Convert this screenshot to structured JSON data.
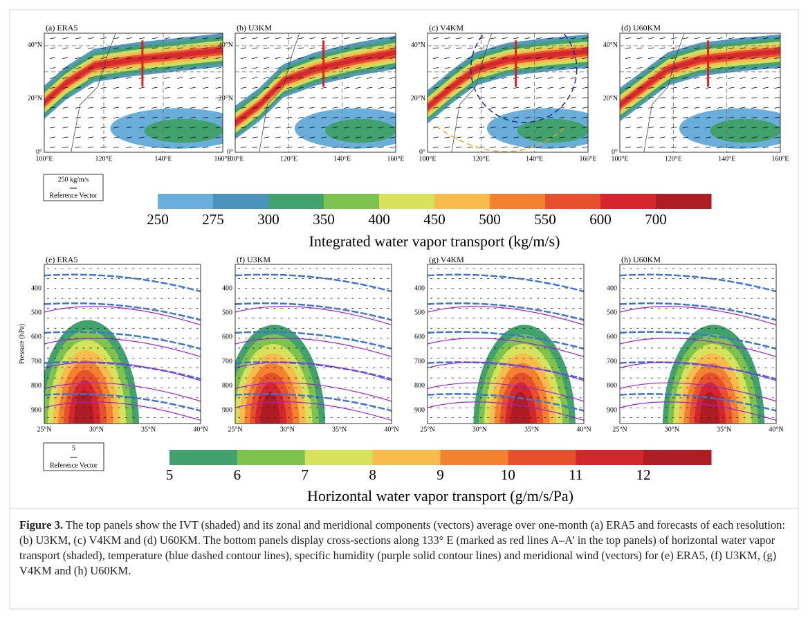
{
  "top_panels": [
    {
      "label": "(a) ERA5"
    },
    {
      "label": "(b) U3KM"
    },
    {
      "label": "(c) V4KM"
    },
    {
      "label": "(d) U60KM"
    }
  ],
  "top_axes": {
    "lon_labels": [
      "100°E",
      "120°E",
      "140°E",
      "160°E"
    ],
    "lat_labels": [
      "0°",
      "20°N",
      "40°N"
    ]
  },
  "top_reference": {
    "value": "250 kg/m/s",
    "label": "Reference Vector"
  },
  "top_colorbar": {
    "labels": [
      "250",
      "275",
      "300",
      "350",
      "400",
      "450",
      "500",
      "550",
      "600",
      "700"
    ],
    "colors": [
      "#6aaedc",
      "#4a93bd",
      "#42a26d",
      "#7ec24f",
      "#d6e25c",
      "#f8bb4c",
      "#f3812f",
      "#e6502d",
      "#d5262e",
      "#ae1c24"
    ],
    "title": "Integrated water vapor transport (kg/m/s)"
  },
  "bottom_panels": [
    {
      "label": "(e) ERA5"
    },
    {
      "label": "(f) U3KM"
    },
    {
      "label": "(g) V4KM"
    },
    {
      "label": "(h) U60KM"
    }
  ],
  "bottom_axes": {
    "y_title": "Pressure (hPa)",
    "pressure_labels": [
      "400",
      "500",
      "600",
      "700",
      "800",
      "900"
    ],
    "lat_labels": [
      "25°N",
      "30°N",
      "35°N",
      "40°N"
    ]
  },
  "bottom_reference": {
    "value": "5",
    "label": "Reference Vector"
  },
  "bottom_colorbar": {
    "labels": [
      "5",
      "6",
      "7",
      "8",
      "9",
      "10",
      "11",
      "12"
    ],
    "colors": [
      "#42a26d",
      "#7ec24f",
      "#d6e25c",
      "#f8bb4c",
      "#f3812f",
      "#e6502d",
      "#d5262e",
      "#ae1c24"
    ],
    "title": "Horizontal water vapor transport (g/m/s/Pa)"
  },
  "caption": {
    "label": "Figure 3.",
    "text": "The top panels show the IVT (shaded) and its zonal and meridional components (vectors) average over one-month (a) ERA5 and forecasts of each resolution: (b) U3KM, (c) V4KM and (d) U60KM. The bottom panels display cross-sections along 133° E (marked as red lines A–A’ in the top panels) of horizontal water vapor transport (shaded), temperature (blue dashed contour lines), specific humidity (purple solid contour lines) and meridional wind (vectors) for (e) ERA5, (f) U3KM, (g) V4KM and (h) U60KM."
  }
}
